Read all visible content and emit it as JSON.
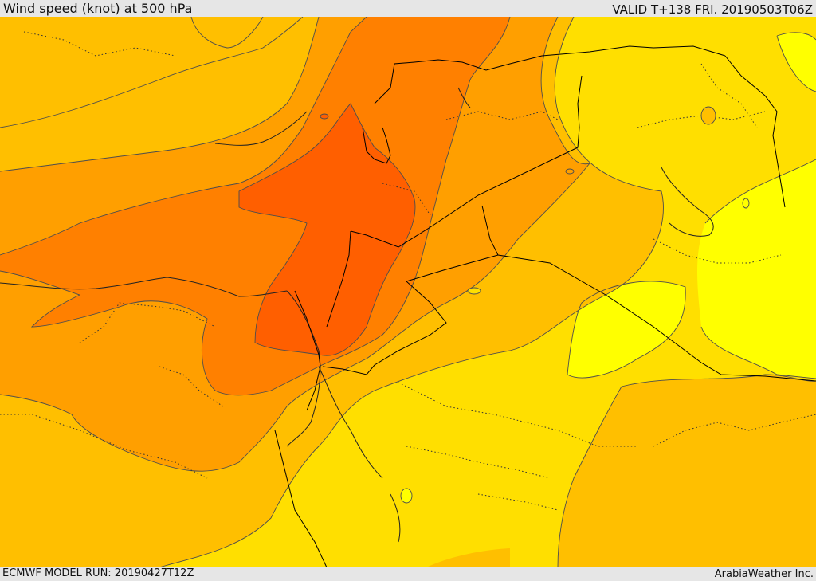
{
  "header": {
    "title": "Wind speed (knot) at 500 hPa",
    "valid": "VALID T+138 FRI. 20190503T06Z"
  },
  "footer": {
    "model_run": "ECMWF MODEL RUN: 20190427T12Z",
    "credit": "ArabiaWeather Inc."
  },
  "colors": {
    "band_lightest": "#ffff00",
    "band_light": "#ffdf00",
    "band_mid": "#ffbf00",
    "band_orange": "#ff9f00",
    "band_darker": "#ff8000",
    "band_deep": "#ff5f00",
    "contour": "#4d4d4d",
    "border": "#000000"
  }
}
